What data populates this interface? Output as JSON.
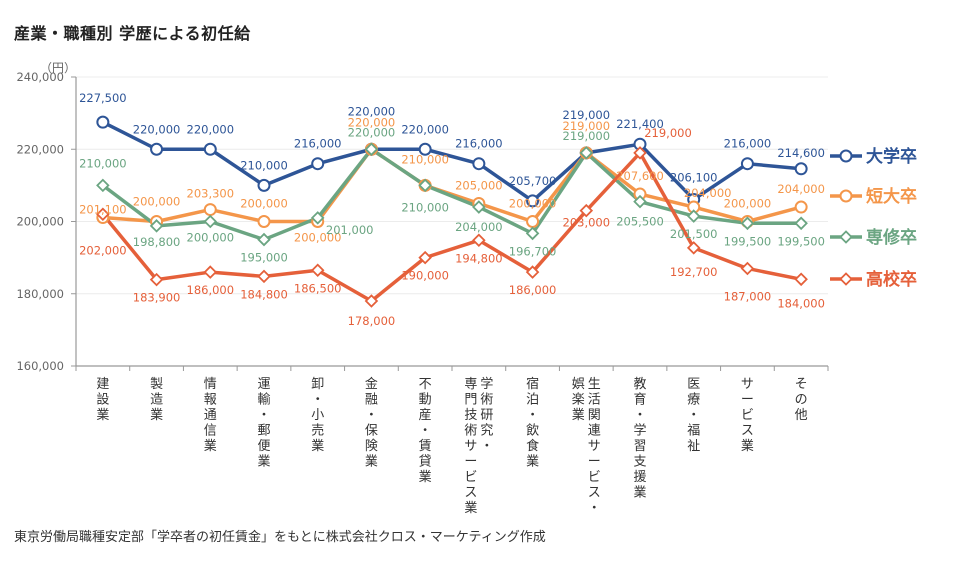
{
  "page": {
    "title": "産業・職種別 学歴による初任給",
    "source": "東京労働局職種安定部「学卒者の初任賃金」をもとに株式会社クロス・マーケティング作成"
  },
  "chart_data": {
    "type": "line",
    "title": "産業・職種別 学歴による初任給",
    "xlabel": "",
    "ylabel": "（円）",
    "ylim": [
      160000,
      240000
    ],
    "yticks": [
      160000,
      180000,
      200000,
      220000,
      240000
    ],
    "ytick_labels": [
      "160,000",
      "180,000",
      "200,000",
      "220,000",
      "240,000"
    ],
    "grid": true,
    "legend_position": "right",
    "categories": [
      "建設業",
      "製造業",
      "情報通信業",
      "運輸・郵便業",
      "卸・小売業",
      "金融・保険業",
      "不動産・賃貸業",
      "学術研究・専門技術サービス業",
      "宿泊・飲食業",
      "生活関連サービス・娯楽業",
      "教育・学習支援業",
      "医療・福祉",
      "サービス業",
      "その他"
    ],
    "category_lines": [
      [
        "建",
        "設",
        "業"
      ],
      [
        "製",
        "造",
        "業"
      ],
      [
        "情",
        "報",
        "通",
        "信",
        "業"
      ],
      [
        "運",
        "輸",
        "・",
        "郵",
        "便",
        "業"
      ],
      [
        "卸",
        "・",
        "小",
        "売",
        "業"
      ],
      [
        "金",
        "融",
        "・",
        "保",
        "険",
        "業"
      ],
      [
        "不",
        "動",
        "産",
        "・",
        "賃",
        "貸",
        "業"
      ],
      [
        "学",
        "術",
        "研",
        "究",
        "・"
      ],
      [
        "宿",
        "泊",
        "・",
        "飲",
        "食",
        "業"
      ],
      [
        "生",
        "活",
        "関",
        "連",
        "サ",
        "ー",
        "ビ",
        "ス",
        "・"
      ],
      [
        "教",
        "育",
        "・",
        "学",
        "習",
        "支",
        "援",
        "業"
      ],
      [
        "医",
        "療",
        "・",
        "福",
        "祉"
      ],
      [
        "サ",
        "ー",
        "ビ",
        "ス",
        "業"
      ],
      [
        "そ",
        "の",
        "他"
      ]
    ],
    "category_second_lines": {
      "7": [
        "専",
        "門",
        "技",
        "術",
        "サ",
        "ー",
        "ビ",
        "ス",
        "業"
      ],
      "9": [
        "娯",
        "楽",
        "業"
      ]
    },
    "series": [
      {
        "name": "大学卒",
        "color": "#2E5597",
        "marker": "circle",
        "values": [
          227500,
          220000,
          220000,
          210000,
          216000,
          220000,
          220000,
          216000,
          205700,
          219000,
          221400,
          206100,
          216000,
          214600
        ],
        "labels": [
          "227,500",
          "220,000",
          "220,000",
          "210,000",
          "216,000",
          "220,000",
          "220,000",
          "216,000",
          "205,700",
          "219,000",
          "221,400",
          "206,100",
          "216,000",
          "214,600"
        ]
      },
      {
        "name": "短大卒",
        "color": "#F4964A",
        "marker": "circle",
        "values": [
          201100,
          200000,
          203300,
          200000,
          200000,
          220000,
          210000,
          205000,
          200000,
          219000,
          207600,
          204000,
          200000,
          204000
        ],
        "labels": [
          "201,100",
          "200,000",
          "203,300",
          "200,000",
          "200,000",
          "220,000",
          "210,000",
          "205,000",
          "200,000",
          "219,000",
          "207,600",
          "204,000",
          "200,000",
          "204,000"
        ]
      },
      {
        "name": "専修卒",
        "color": "#6BA582",
        "marker": "diamond",
        "values": [
          210000,
          198800,
          200000,
          195000,
          201000,
          220000,
          210000,
          204000,
          196700,
          219000,
          205500,
          201500,
          199500,
          199500
        ],
        "labels": [
          "210,000",
          "198,800",
          "200,000",
          "195,000",
          "201,000",
          "220,000",
          "210,000",
          "204,000",
          "196,700",
          "219,000",
          "205,500",
          "201,500",
          "199,500",
          "199,500"
        ]
      },
      {
        "name": "高校卒",
        "color": "#E5603A",
        "marker": "diamond",
        "values": [
          202000,
          183900,
          186000,
          184800,
          186500,
          178000,
          190000,
          194800,
          186000,
          203000,
          219000,
          192700,
          187000,
          184000
        ],
        "labels": [
          "202,000",
          "183,900",
          "186,000",
          "184,800",
          "186,500",
          "178,000",
          "190,000",
          "194,800",
          "186,000",
          "203,000",
          "219,000",
          "192,700",
          "187,000",
          "184,000"
        ]
      }
    ]
  }
}
